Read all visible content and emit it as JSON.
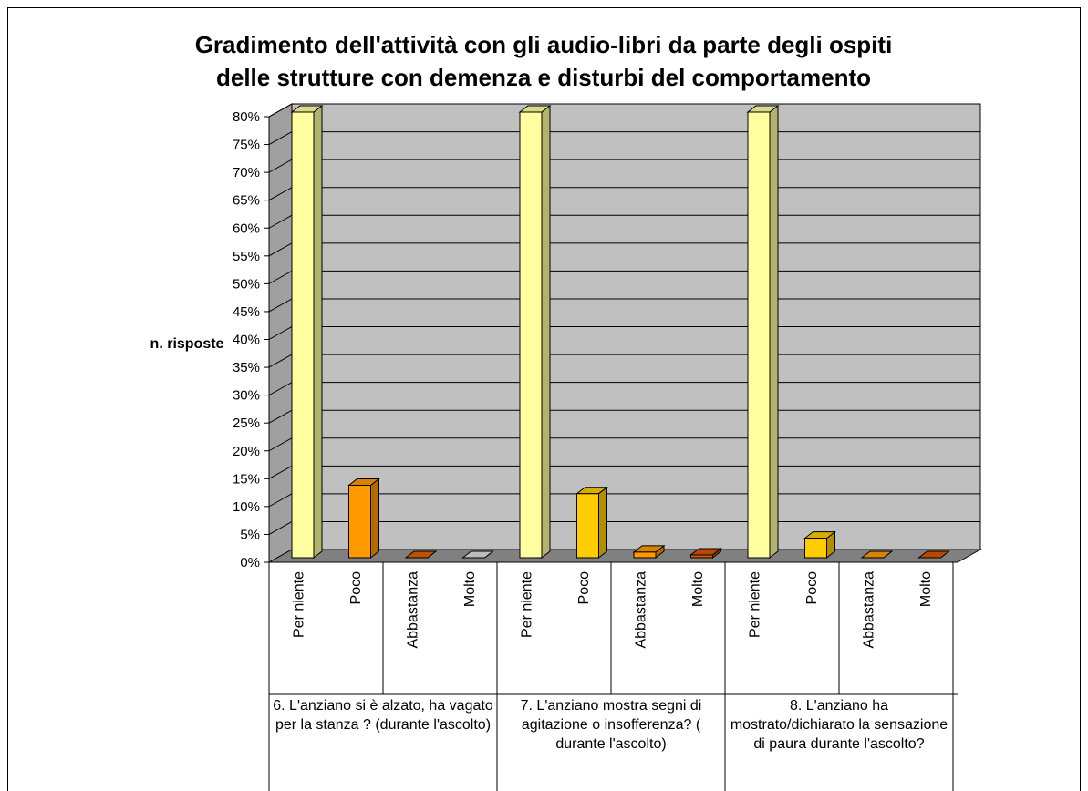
{
  "chart_data": {
    "type": "bar",
    "title": [
      "Gradimento dell'attività con gli audio-libri da parte degli ospiti",
      "delle strutture con demenza e disturbi del comportamento"
    ],
    "y_label": "n. risposte",
    "categories": [
      "Per niente",
      "Poco",
      "Abbastanza",
      "Molto",
      "Per niente",
      "Poco",
      "Abbastanza",
      "Molto",
      "Per niente",
      "Poco",
      "Abbastanza",
      "Molto"
    ],
    "groups": [
      "6. L'anziano si è alzato, ha vagato per la stanza ? (durante l'ascolto)",
      "7. L'anziano mostra segni di agitazione o insofferenza? ( durante l'ascolto)",
      "8. L'anziano ha mostrato/dichiarato la sensazione di paura durante l'ascolto?"
    ],
    "values": [
      80,
      13,
      0,
      0,
      80,
      11.5,
      1,
      0.5,
      80,
      3.5,
      0,
      0
    ],
    "colors": [
      "#ffffa0",
      "#ff9900",
      "#e06000",
      "#dddddd",
      "#ffffa0",
      "#ffcc00",
      "#ff9900",
      "#dd5500",
      "#ffffa0",
      "#ffcc00",
      "#ff9900",
      "#dd5500"
    ],
    "ylim": [
      0,
      80
    ],
    "yticks": [
      {
        "value": 0,
        "label": "0%"
      },
      {
        "value": 5,
        "label": "5%"
      },
      {
        "value": 10,
        "label": "10%"
      },
      {
        "value": 15,
        "label": "15%"
      },
      {
        "value": 20,
        "label": "20%"
      },
      {
        "value": 25,
        "label": "25%"
      },
      {
        "value": 30,
        "label": "30%"
      },
      {
        "value": 35,
        "label": "35%"
      },
      {
        "value": 40,
        "label": "40%"
      },
      {
        "value": 45,
        "label": "45%"
      },
      {
        "value": 50,
        "label": "50%"
      },
      {
        "value": 55,
        "label": "55%"
      },
      {
        "value": 60,
        "label": "60%"
      },
      {
        "value": 65,
        "label": "65%"
      },
      {
        "value": 70,
        "label": "70%"
      },
      {
        "value": 75,
        "label": "75%"
      },
      {
        "value": 80,
        "label": "80%"
      }
    ],
    "grid": true
  }
}
